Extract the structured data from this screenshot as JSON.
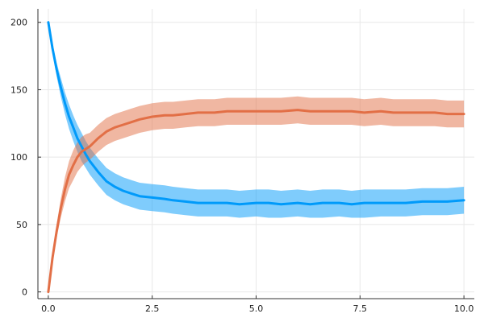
{
  "chart_data": {
    "type": "line",
    "title": "",
    "xlabel": "",
    "ylabel": "",
    "xlim": [
      -0.25,
      10.25
    ],
    "ylim": [
      -5,
      210
    ],
    "grid": true,
    "legend": "none",
    "x_ticks": [
      0,
      2.5,
      5,
      7.5,
      10
    ],
    "x_tick_labels": [
      "0.0",
      "2.5",
      "5.0",
      "7.5",
      "10.0"
    ],
    "y_ticks": [
      0,
      50,
      100,
      150,
      200
    ],
    "y_tick_labels": [
      "0",
      "50",
      "100",
      "150",
      "200"
    ],
    "series": [
      {
        "color": "#009AFA",
        "band_color": "#009AFA",
        "x": [
          0,
          0.1,
          0.2,
          0.3,
          0.4,
          0.5,
          0.6,
          0.7,
          0.8,
          0.9,
          1.0,
          1.2,
          1.4,
          1.6,
          1.8,
          2.0,
          2.2,
          2.5,
          2.8,
          3.0,
          3.3,
          3.6,
          4.0,
          4.3,
          4.6,
          5.0,
          5.3,
          5.6,
          6.0,
          6.3,
          6.6,
          7.0,
          7.3,
          7.6,
          8.0,
          8.3,
          8.6,
          9.0,
          9.3,
          9.6,
          10.0
        ],
        "mean": [
          200,
          181,
          165,
          152,
          140,
          130,
          122,
          114,
          108,
          102,
          97,
          89,
          82,
          78,
          75,
          73,
          71,
          70,
          69,
          68,
          67,
          66,
          66,
          66,
          65,
          66,
          66,
          65,
          66,
          65,
          66,
          66,
          65,
          66,
          66,
          66,
          66,
          67,
          67,
          67,
          68
        ],
        "lower": [
          200,
          178,
          160,
          145,
          132,
          121,
          112,
          104,
          97,
          92,
          87,
          79,
          72,
          68,
          65,
          63,
          61,
          60,
          59,
          58,
          57,
          56,
          56,
          56,
          55,
          56,
          55,
          55,
          56,
          55,
          55,
          56,
          55,
          55,
          56,
          56,
          56,
          57,
          57,
          57,
          58
        ],
        "upper": [
          200,
          184,
          170,
          159,
          148,
          139,
          131,
          124,
          118,
          112,
          107,
          99,
          92,
          88,
          85,
          83,
          81,
          80,
          79,
          78,
          77,
          76,
          76,
          76,
          75,
          76,
          76,
          75,
          76,
          75,
          76,
          76,
          75,
          76,
          76,
          76,
          76,
          77,
          77,
          77,
          78
        ]
      },
      {
        "color": "#E26F46",
        "band_color": "#E26F46",
        "x": [
          0,
          0.1,
          0.2,
          0.3,
          0.4,
          0.5,
          0.6,
          0.7,
          0.8,
          0.9,
          1.0,
          1.2,
          1.4,
          1.6,
          1.8,
          2.0,
          2.2,
          2.5,
          2.8,
          3.0,
          3.3,
          3.6,
          4.0,
          4.3,
          4.6,
          5.0,
          5.3,
          5.6,
          6.0,
          6.3,
          6.6,
          7.0,
          7.3,
          7.6,
          8.0,
          8.3,
          8.6,
          9.0,
          9.3,
          9.6,
          10.0
        ],
        "mean": [
          0,
          25,
          45,
          62,
          76,
          87,
          94,
          100,
          104,
          106,
          108,
          114,
          119,
          122,
          124,
          126,
          128,
          130,
          131,
          131,
          132,
          133,
          133,
          134,
          134,
          134,
          134,
          134,
          135,
          134,
          134,
          134,
          134,
          133,
          134,
          133,
          133,
          133,
          133,
          132,
          132
        ],
        "lower": [
          0,
          22,
          40,
          55,
          67,
          77,
          83,
          89,
          93,
          96,
          98,
          104,
          109,
          112,
          114,
          116,
          118,
          120,
          121,
          121,
          122,
          123,
          123,
          124,
          124,
          124,
          124,
          124,
          125,
          124,
          124,
          124,
          124,
          123,
          124,
          123,
          123,
          123,
          123,
          122,
          122
        ],
        "upper": [
          0,
          28,
          50,
          69,
          85,
          97,
          105,
          111,
          115,
          117,
          118,
          124,
          129,
          132,
          134,
          136,
          138,
          140,
          141,
          141,
          142,
          143,
          143,
          144,
          144,
          144,
          144,
          144,
          145,
          144,
          144,
          144,
          144,
          143,
          144,
          143,
          143,
          143,
          143,
          142,
          142
        ]
      }
    ]
  }
}
